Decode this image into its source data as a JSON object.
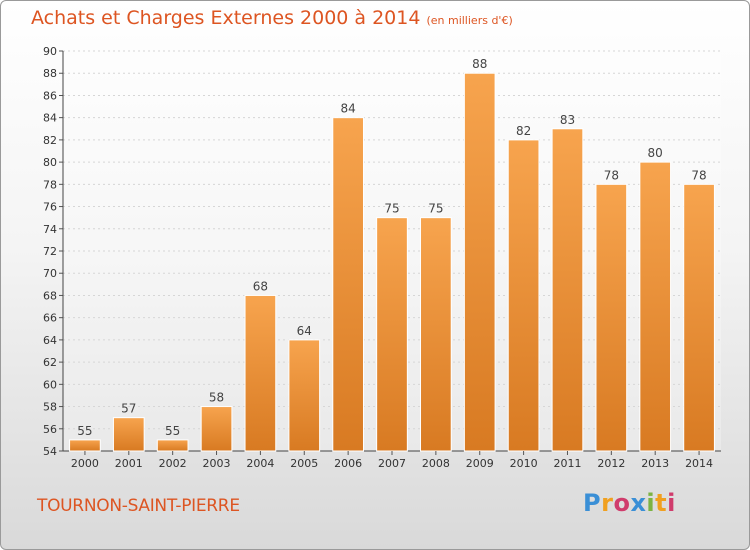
{
  "title": "Achats et Charges Externes 2000 à 2014",
  "unit_note": "(en milliers d'€)",
  "commune": "TOURNON-SAINT-PIERRE",
  "logo": {
    "letters": [
      "P",
      "r",
      "o",
      "x",
      "i",
      "t",
      "i"
    ],
    "colors": [
      "#3a8fd6",
      "#f0a020",
      "#d03c6c",
      "#3a8fd6",
      "#7cb342",
      "#f0a020",
      "#d03c6c"
    ]
  },
  "colors": {
    "bar_light": "#f7a44e",
    "bar_dark": "#d87a22",
    "title": "#dd5522"
  },
  "chart_data": {
    "type": "bar",
    "title": "Achats et Charges Externes 2000 à 2014",
    "xlabel": "",
    "ylabel": "",
    "categories": [
      "2000",
      "2001",
      "2002",
      "2003",
      "2004",
      "2005",
      "2006",
      "2007",
      "2008",
      "2009",
      "2010",
      "2011",
      "2012",
      "2013",
      "2014"
    ],
    "values": [
      55,
      57,
      55,
      58,
      68,
      64,
      84,
      75,
      75,
      88,
      82,
      83,
      78,
      80,
      78
    ],
    "ylim": [
      54,
      90
    ],
    "yticks": [
      54,
      56,
      58,
      60,
      62,
      64,
      66,
      68,
      70,
      72,
      74,
      76,
      78,
      80,
      82,
      84,
      86,
      88,
      90
    ],
    "grid": true
  }
}
